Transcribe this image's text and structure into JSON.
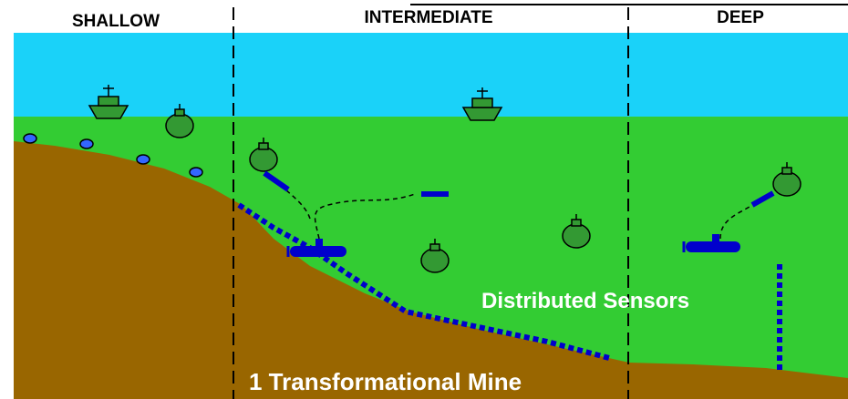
{
  "zones": [
    "SHALLOW",
    "INTERMEDIATE",
    "DEEP"
  ],
  "labels": {
    "sensors": "Distributed Sensors",
    "mine": "1 Transformational Mine"
  }
}
